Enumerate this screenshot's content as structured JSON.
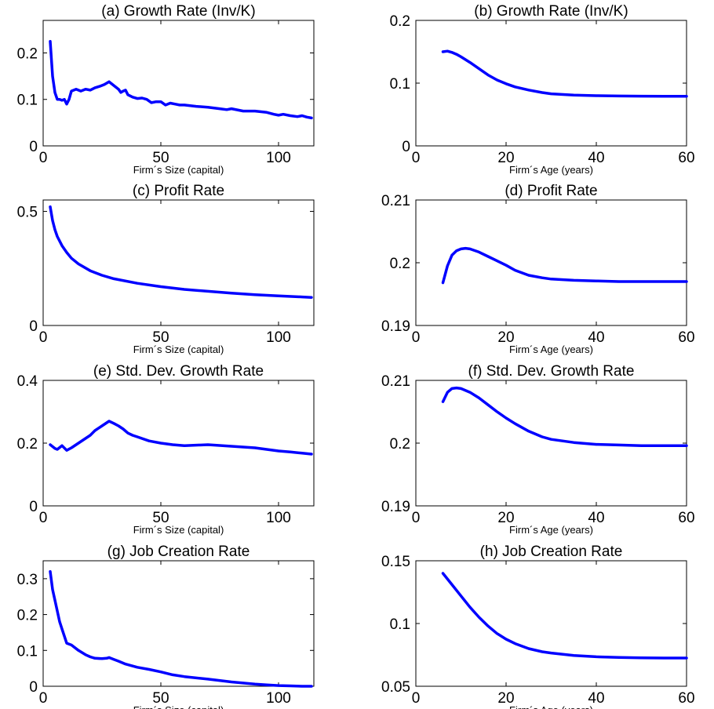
{
  "chart_data": [
    {
      "type": "line",
      "title": "(a) Growth Rate (Inv/K)",
      "xlabel": "Firm´s Size (capital)",
      "ylabel": "",
      "xlim": [
        0,
        115
      ],
      "ylim": [
        0,
        0.27
      ],
      "xticks": [
        0,
        50,
        100
      ],
      "xtick_labels": [
        "0",
        "50",
        "100"
      ],
      "yticks": [
        0,
        0.1,
        0.2
      ],
      "ytick_labels": [
        "0",
        "0.1",
        "0.2"
      ],
      "grid": false,
      "line_color": "#0000ff",
      "series": [
        {
          "x": [
            3,
            4,
            5,
            6,
            7,
            8,
            9,
            10,
            11,
            12,
            14,
            16,
            18,
            20,
            22,
            24,
            26,
            27,
            28,
            30,
            32,
            33,
            34,
            35,
            36,
            38,
            40,
            42,
            44,
            46,
            48,
            50,
            52,
            54,
            56,
            58,
            60,
            65,
            70,
            75,
            78,
            80,
            85,
            90,
            95,
            98,
            100,
            102,
            105,
            108,
            110,
            112,
            114
          ],
          "y": [
            0.225,
            0.15,
            0.115,
            0.1,
            0.1,
            0.098,
            0.1,
            0.09,
            0.1,
            0.118,
            0.122,
            0.118,
            0.122,
            0.12,
            0.125,
            0.128,
            0.132,
            0.135,
            0.138,
            0.13,
            0.122,
            0.115,
            0.118,
            0.12,
            0.11,
            0.105,
            0.102,
            0.103,
            0.1,
            0.093,
            0.095,
            0.095,
            0.088,
            0.092,
            0.09,
            0.088,
            0.088,
            0.085,
            0.083,
            0.08,
            0.078,
            0.08,
            0.075,
            0.075,
            0.072,
            0.068,
            0.066,
            0.068,
            0.065,
            0.063,
            0.065,
            0.062,
            0.06
          ]
        }
      ]
    },
    {
      "type": "line",
      "title": "(b) Growth Rate (Inv/K)",
      "xlabel": "Firm´s Age (years)",
      "ylabel": "",
      "xlim": [
        0,
        60
      ],
      "ylim": [
        0,
        0.2
      ],
      "xticks": [
        0,
        20,
        40,
        60
      ],
      "xtick_labels": [
        "0",
        "20",
        "40",
        "60"
      ],
      "yticks": [
        0,
        0.1,
        0.2
      ],
      "ytick_labels": [
        "0",
        "0.1",
        "0.2"
      ],
      "grid": false,
      "line_color": "#0000ff",
      "series": [
        {
          "x": [
            6,
            7,
            8,
            9,
            10,
            12,
            14,
            16,
            18,
            20,
            22,
            25,
            28,
            30,
            35,
            40,
            45,
            50,
            55,
            60
          ],
          "y": [
            0.15,
            0.151,
            0.149,
            0.146,
            0.142,
            0.133,
            0.123,
            0.113,
            0.105,
            0.099,
            0.094,
            0.089,
            0.085,
            0.083,
            0.081,
            0.08,
            0.0795,
            0.0792,
            0.079,
            0.079
          ]
        }
      ]
    },
    {
      "type": "line",
      "title": "(c) Profit Rate",
      "xlabel": "Firm´s Size (capital)",
      "ylabel": "",
      "xlim": [
        0,
        115
      ],
      "ylim": [
        0,
        0.55
      ],
      "xticks": [
        0,
        50,
        100
      ],
      "xtick_labels": [
        "0",
        "50",
        "100"
      ],
      "yticks": [
        0,
        0.5
      ],
      "ytick_labels": [
        "0",
        "0.5"
      ],
      "grid": false,
      "line_color": "#0000ff",
      "series": [
        {
          "x": [
            3,
            4,
            5,
            6,
            8,
            10,
            12,
            15,
            20,
            25,
            30,
            40,
            50,
            60,
            70,
            80,
            90,
            100,
            110,
            114
          ],
          "y": [
            0.52,
            0.46,
            0.42,
            0.39,
            0.35,
            0.32,
            0.295,
            0.27,
            0.24,
            0.22,
            0.205,
            0.185,
            0.17,
            0.158,
            0.15,
            0.142,
            0.135,
            0.13,
            0.125,
            0.123
          ]
        }
      ]
    },
    {
      "type": "line",
      "title": "(d) Profit Rate",
      "xlabel": "Firm´s Age (years)",
      "ylabel": "",
      "xlim": [
        0,
        60
      ],
      "ylim": [
        0.19,
        0.21
      ],
      "xticks": [
        0,
        20,
        40,
        60
      ],
      "xtick_labels": [
        "0",
        "20",
        "40",
        "60"
      ],
      "yticks": [
        0.19,
        0.2,
        0.21
      ],
      "ytick_labels": [
        "0.19",
        "0.2",
        "0.21"
      ],
      "grid": false,
      "line_color": "#0000ff",
      "series": [
        {
          "x": [
            6,
            7,
            8,
            9,
            10,
            11,
            12,
            14,
            16,
            18,
            20,
            22,
            25,
            28,
            30,
            35,
            40,
            45,
            50,
            55,
            60
          ],
          "y": [
            0.1968,
            0.1995,
            0.2012,
            0.2019,
            0.2022,
            0.2023,
            0.2022,
            0.2017,
            0.201,
            0.2003,
            0.1996,
            0.1988,
            0.198,
            0.1976,
            0.1974,
            0.1972,
            0.1971,
            0.197,
            0.197,
            0.197,
            0.197
          ]
        }
      ]
    },
    {
      "type": "line",
      "title": "(e) Std. Dev. Growth Rate",
      "xlabel": "Firm´s Size (capital)",
      "ylabel": "",
      "xlim": [
        0,
        115
      ],
      "ylim": [
        0,
        0.4
      ],
      "xticks": [
        0,
        50,
        100
      ],
      "xtick_labels": [
        "0",
        "50",
        "100"
      ],
      "yticks": [
        0,
        0.2,
        0.4
      ],
      "ytick_labels": [
        "0",
        "0.2",
        "0.4"
      ],
      "grid": false,
      "line_color": "#0000ff",
      "series": [
        {
          "x": [
            3,
            5,
            6,
            8,
            10,
            12,
            15,
            18,
            20,
            22,
            25,
            27,
            28,
            30,
            32,
            34,
            36,
            38,
            40,
            45,
            50,
            55,
            60,
            70,
            80,
            90,
            100,
            105,
            110,
            114
          ],
          "y": [
            0.195,
            0.183,
            0.18,
            0.192,
            0.177,
            0.185,
            0.2,
            0.215,
            0.225,
            0.24,
            0.255,
            0.265,
            0.27,
            0.263,
            0.255,
            0.245,
            0.232,
            0.225,
            0.22,
            0.207,
            0.2,
            0.195,
            0.192,
            0.195,
            0.19,
            0.185,
            0.175,
            0.172,
            0.168,
            0.165
          ]
        }
      ]
    },
    {
      "type": "line",
      "title": "(f) Std. Dev. Growth Rate",
      "xlabel": "Firm´s Age (years)",
      "ylabel": "",
      "xlim": [
        0,
        60
      ],
      "ylim": [
        0.19,
        0.21
      ],
      "xticks": [
        0,
        20,
        40,
        60
      ],
      "xtick_labels": [
        "0",
        "20",
        "40",
        "60"
      ],
      "yticks": [
        0.19,
        0.2,
        0.21
      ],
      "ytick_labels": [
        "0.19",
        "0.2",
        "0.21"
      ],
      "grid": false,
      "line_color": "#0000ff",
      "series": [
        {
          "x": [
            6,
            7,
            8,
            9,
            10,
            12,
            14,
            16,
            18,
            20,
            22,
            25,
            28,
            30,
            35,
            40,
            45,
            50,
            55,
            60
          ],
          "y": [
            0.2066,
            0.2081,
            0.2087,
            0.2088,
            0.2087,
            0.2081,
            0.2072,
            0.2061,
            0.205,
            0.204,
            0.2031,
            0.2019,
            0.201,
            0.2006,
            0.2001,
            0.1998,
            0.1997,
            0.1996,
            0.1996,
            0.1996
          ]
        }
      ]
    },
    {
      "type": "line",
      "title": "(g) Job Creation Rate",
      "xlabel": "Firm´s Size (capital)",
      "ylabel": "",
      "xlim": [
        0,
        115
      ],
      "ylim": [
        0,
        0.35
      ],
      "xticks": [
        0,
        50,
        100
      ],
      "xtick_labels": [
        "0",
        "50",
        "100"
      ],
      "yticks": [
        0,
        0.1,
        0.2,
        0.3
      ],
      "ytick_labels": [
        "0",
        "0.1",
        "0.2",
        "0.3"
      ],
      "grid": false,
      "line_color": "#0000ff",
      "series": [
        {
          "x": [
            3,
            4,
            5,
            6,
            7,
            8,
            10,
            12,
            15,
            18,
            20,
            22,
            25,
            27,
            28,
            30,
            32,
            35,
            40,
            45,
            50,
            55,
            60,
            70,
            80,
            90,
            95,
            100,
            105,
            110,
            114
          ],
          "y": [
            0.32,
            0.27,
            0.24,
            0.21,
            0.18,
            0.16,
            0.12,
            0.115,
            0.1,
            0.088,
            0.082,
            0.078,
            0.077,
            0.078,
            0.08,
            0.075,
            0.07,
            0.062,
            0.053,
            0.047,
            0.04,
            0.032,
            0.027,
            0.02,
            0.012,
            0.006,
            0.004,
            0.002,
            0.001,
            0,
            0
          ]
        }
      ]
    },
    {
      "type": "line",
      "title": "(h) Job Creation Rate",
      "xlabel": "Firm´s Age (years)",
      "ylabel": "",
      "xlim": [
        0,
        60
      ],
      "ylim": [
        0.05,
        0.15
      ],
      "xticks": [
        0,
        20,
        40,
        60
      ],
      "xtick_labels": [
        "0",
        "20",
        "40",
        "60"
      ],
      "yticks": [
        0.05,
        0.1,
        0.15
      ],
      "ytick_labels": [
        "0.05",
        "0.1",
        "0.15"
      ],
      "grid": false,
      "line_color": "#0000ff",
      "series": [
        {
          "x": [
            6,
            8,
            10,
            12,
            14,
            16,
            18,
            20,
            22,
            25,
            28,
            30,
            35,
            40,
            45,
            50,
            55,
            60
          ],
          "y": [
            0.14,
            0.131,
            0.122,
            0.113,
            0.105,
            0.098,
            0.092,
            0.0875,
            0.084,
            0.08,
            0.0775,
            0.0765,
            0.0745,
            0.0735,
            0.073,
            0.0726,
            0.0725,
            0.0725
          ]
        }
      ]
    }
  ]
}
